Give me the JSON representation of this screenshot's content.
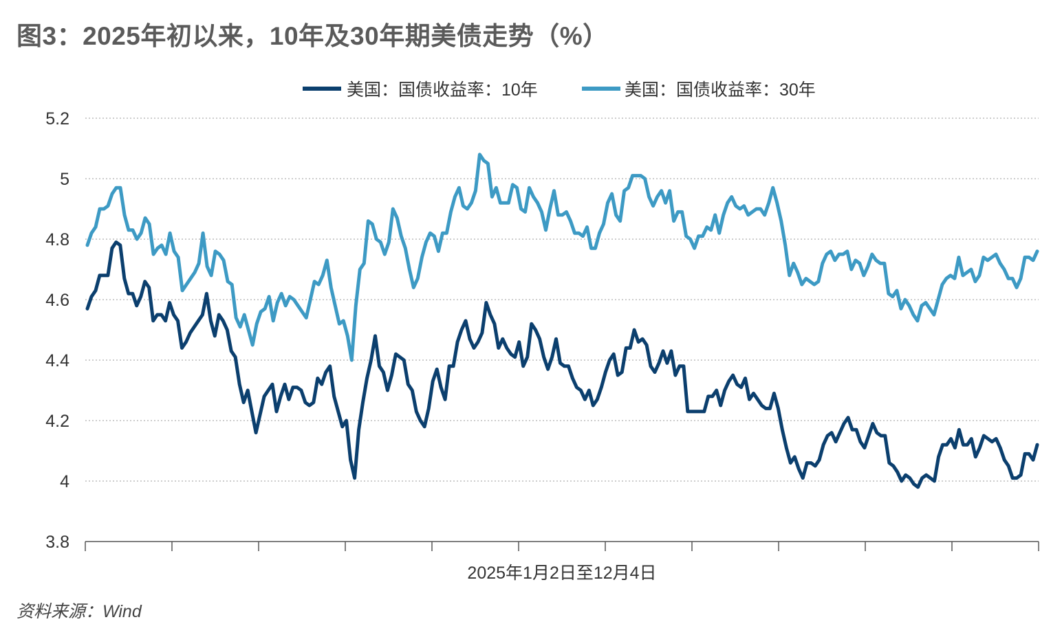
{
  "title": "图3：2025年初以来，10年及30年期美债走势（%）",
  "source": "资料来源：Wind",
  "chart_data": {
    "type": "line",
    "title": "图3：2025年初以来，10年及30年期美债走势（%）",
    "xlabel": "2025年1月2日至12月4日",
    "ylabel": "",
    "ylim": [
      3.8,
      5.2
    ],
    "yticks": [
      3.8,
      4,
      4.2,
      4.4,
      4.6,
      4.8,
      5,
      5.2
    ],
    "ytick_labels": [
      "3.8",
      "4",
      "4.2",
      "4.4",
      "4.6",
      "4.8",
      "5",
      "5.2"
    ],
    "x_start": "2025-01-02",
    "x_end": "2025-12-04",
    "x_tick_count": 12,
    "grid": true,
    "legend_position": "top-center",
    "series": [
      {
        "name": "美国：国债收益率：10年",
        "color": "#0b3f6e",
        "values": [
          4.57,
          4.61,
          4.63,
          4.68,
          4.68,
          4.68,
          4.77,
          4.79,
          4.78,
          4.67,
          4.62,
          4.62,
          4.58,
          4.61,
          4.66,
          4.64,
          4.53,
          4.55,
          4.55,
          4.53,
          4.59,
          4.55,
          4.53,
          4.44,
          4.46,
          4.49,
          4.51,
          4.53,
          4.55,
          4.62,
          4.53,
          4.48,
          4.55,
          4.53,
          4.5,
          4.43,
          4.41,
          4.32,
          4.26,
          4.3,
          4.23,
          4.16,
          4.22,
          4.28,
          4.3,
          4.32,
          4.23,
          4.28,
          4.32,
          4.27,
          4.31,
          4.31,
          4.3,
          4.26,
          4.25,
          4.26,
          4.34,
          4.32,
          4.36,
          4.38,
          4.28,
          4.23,
          4.18,
          4.2,
          4.07,
          4.01,
          4.17,
          4.26,
          4.34,
          4.4,
          4.48,
          4.38,
          4.36,
          4.3,
          4.35,
          4.42,
          4.41,
          4.4,
          4.32,
          4.3,
          4.23,
          4.2,
          4.18,
          4.24,
          4.33,
          4.37,
          4.31,
          4.27,
          4.38,
          4.38,
          4.46,
          4.5,
          4.53,
          4.47,
          4.44,
          4.46,
          4.49,
          4.59,
          4.55,
          4.52,
          4.44,
          4.47,
          4.44,
          4.42,
          4.41,
          4.46,
          4.38,
          4.41,
          4.52,
          4.5,
          4.47,
          4.41,
          4.37,
          4.41,
          4.47,
          4.39,
          4.38,
          4.38,
          4.34,
          4.31,
          4.3,
          4.27,
          4.3,
          4.25,
          4.27,
          4.31,
          4.36,
          4.4,
          4.42,
          4.35,
          4.36,
          4.44,
          4.44,
          4.5,
          4.46,
          4.47,
          4.45,
          4.38,
          4.36,
          4.39,
          4.43,
          4.39,
          4.43,
          4.35,
          4.38,
          4.38,
          4.23,
          4.23,
          4.23,
          4.23,
          4.23,
          4.28,
          4.28,
          4.3,
          4.25,
          4.3,
          4.33,
          4.35,
          4.32,
          4.31,
          4.34,
          4.27,
          4.29,
          4.27,
          4.25,
          4.24,
          4.24,
          4.29,
          4.24,
          4.17,
          4.11,
          4.06,
          4.08,
          4.04,
          4.01,
          4.06,
          4.06,
          4.05,
          4.07,
          4.12,
          4.15,
          4.16,
          4.13,
          4.16,
          4.19,
          4.21,
          4.17,
          4.17,
          4.13,
          4.11,
          4.15,
          4.19,
          4.16,
          4.15,
          4.15,
          4.06,
          4.05,
          4.03,
          4.0,
          4.02,
          4.01,
          3.99,
          3.98,
          4.01,
          4.02,
          4.01,
          4.0,
          4.08,
          4.12,
          4.12,
          4.14,
          4.11,
          4.17,
          4.12,
          4.12,
          4.14,
          4.08,
          4.11,
          4.15,
          4.14,
          4.13,
          4.14,
          4.11,
          4.07,
          4.05,
          4.01,
          4.01,
          4.02,
          4.09,
          4.09,
          4.07,
          4.12
        ]
      },
      {
        "name": "美国：国债收益率：30年",
        "color": "#3d9ac4",
        "values": [
          4.78,
          4.82,
          4.84,
          4.9,
          4.9,
          4.91,
          4.95,
          4.97,
          4.97,
          4.88,
          4.83,
          4.83,
          4.8,
          4.82,
          4.87,
          4.85,
          4.75,
          4.77,
          4.78,
          4.75,
          4.82,
          4.76,
          4.74,
          4.63,
          4.65,
          4.67,
          4.69,
          4.72,
          4.82,
          4.71,
          4.68,
          4.76,
          4.75,
          4.73,
          4.66,
          4.65,
          4.54,
          4.51,
          4.55,
          4.5,
          4.45,
          4.52,
          4.56,
          4.57,
          4.61,
          4.53,
          4.59,
          4.62,
          4.58,
          4.61,
          4.6,
          4.58,
          4.56,
          4.54,
          4.6,
          4.66,
          4.65,
          4.68,
          4.73,
          4.64,
          4.58,
          4.52,
          4.53,
          4.48,
          4.4,
          4.58,
          4.7,
          4.72,
          4.86,
          4.85,
          4.8,
          4.79,
          4.75,
          4.79,
          4.9,
          4.87,
          4.81,
          4.77,
          4.7,
          4.64,
          4.67,
          4.74,
          4.79,
          4.82,
          4.81,
          4.76,
          4.82,
          4.82,
          4.89,
          4.94,
          4.97,
          4.91,
          4.9,
          4.92,
          4.96,
          5.08,
          5.06,
          5.05,
          4.94,
          4.97,
          4.92,
          4.92,
          4.92,
          4.98,
          4.97,
          4.9,
          4.89,
          4.97,
          4.94,
          4.92,
          4.89,
          4.83,
          4.9,
          4.96,
          4.88,
          4.88,
          4.89,
          4.86,
          4.82,
          4.82,
          4.81,
          4.84,
          4.77,
          4.77,
          4.82,
          4.85,
          4.92,
          4.95,
          4.88,
          4.86,
          4.96,
          4.97,
          5.01,
          5.01,
          5.01,
          5.0,
          4.94,
          4.91,
          4.94,
          4.96,
          4.92,
          4.96,
          4.86,
          4.89,
          4.89,
          4.81,
          4.8,
          4.77,
          4.81,
          4.81,
          4.84,
          4.83,
          4.88,
          4.82,
          4.88,
          4.92,
          4.94,
          4.91,
          4.9,
          4.91,
          4.88,
          4.89,
          4.9,
          4.9,
          4.88,
          4.92,
          4.97,
          4.92,
          4.86,
          4.78,
          4.68,
          4.72,
          4.69,
          4.65,
          4.67,
          4.66,
          4.65,
          4.66,
          4.72,
          4.75,
          4.76,
          4.73,
          4.75,
          4.75,
          4.76,
          4.7,
          4.73,
          4.72,
          4.68,
          4.71,
          4.75,
          4.73,
          4.72,
          4.72,
          4.62,
          4.61,
          4.63,
          4.57,
          4.6,
          4.58,
          4.55,
          4.53,
          4.58,
          4.59,
          4.57,
          4.55,
          4.6,
          4.65,
          4.67,
          4.68,
          4.67,
          4.74,
          4.68,
          4.69,
          4.7,
          4.66,
          4.68,
          4.74,
          4.73,
          4.74,
          4.75,
          4.72,
          4.7,
          4.67,
          4.67,
          4.64,
          4.67,
          4.74,
          4.74,
          4.73,
          4.76
        ]
      }
    ]
  }
}
